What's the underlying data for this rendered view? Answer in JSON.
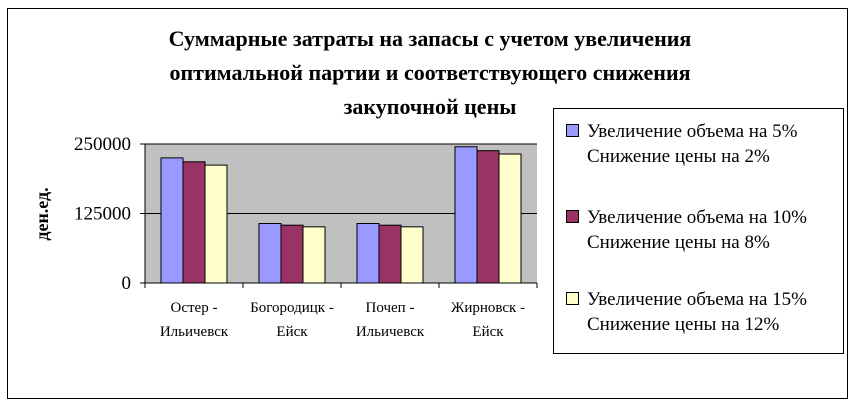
{
  "chart_data": {
    "type": "bar",
    "title_lines": [
      "Суммарные затраты на запасы с учетом увеличения",
      "оптимальной партии и соответствующего снижения",
      "закупочной цены"
    ],
    "ylabel": "ден.ед.",
    "xlabel": "",
    "ylim": [
      0,
      250000
    ],
    "yticks": [
      "0",
      "125000",
      "250000"
    ],
    "ytick_values": [
      0,
      125000,
      250000
    ],
    "grid": true,
    "legend_position": "right",
    "categories": [
      [
        "Остер -",
        "Ильичевск"
      ],
      [
        "Богородицк -",
        "Ейск"
      ],
      [
        "Почеп -",
        "Ильичевск"
      ],
      [
        "Жирновск -",
        "Ейск"
      ]
    ],
    "series": [
      {
        "name_lines": [
          "Увеличение объема на 5%",
          "Снижение цены на 2%"
        ],
        "color": "#9999ff",
        "values": [
          225000,
          107000,
          107000,
          245000
        ]
      },
      {
        "name_lines": [
          "Увеличение объема на 10%",
          "Снижение цены на 8%"
        ],
        "color": "#993366",
        "values": [
          218000,
          104000,
          104000,
          238000
        ]
      },
      {
        "name_lines": [
          "Увеличение объема на 15%",
          "Снижение цены на 12%"
        ],
        "color": "#ffffcc",
        "values": [
          212000,
          101000,
          101000,
          232000
        ]
      }
    ],
    "colors": {
      "plot_bg": "#c0c0c0",
      "axis": "#000000"
    }
  }
}
